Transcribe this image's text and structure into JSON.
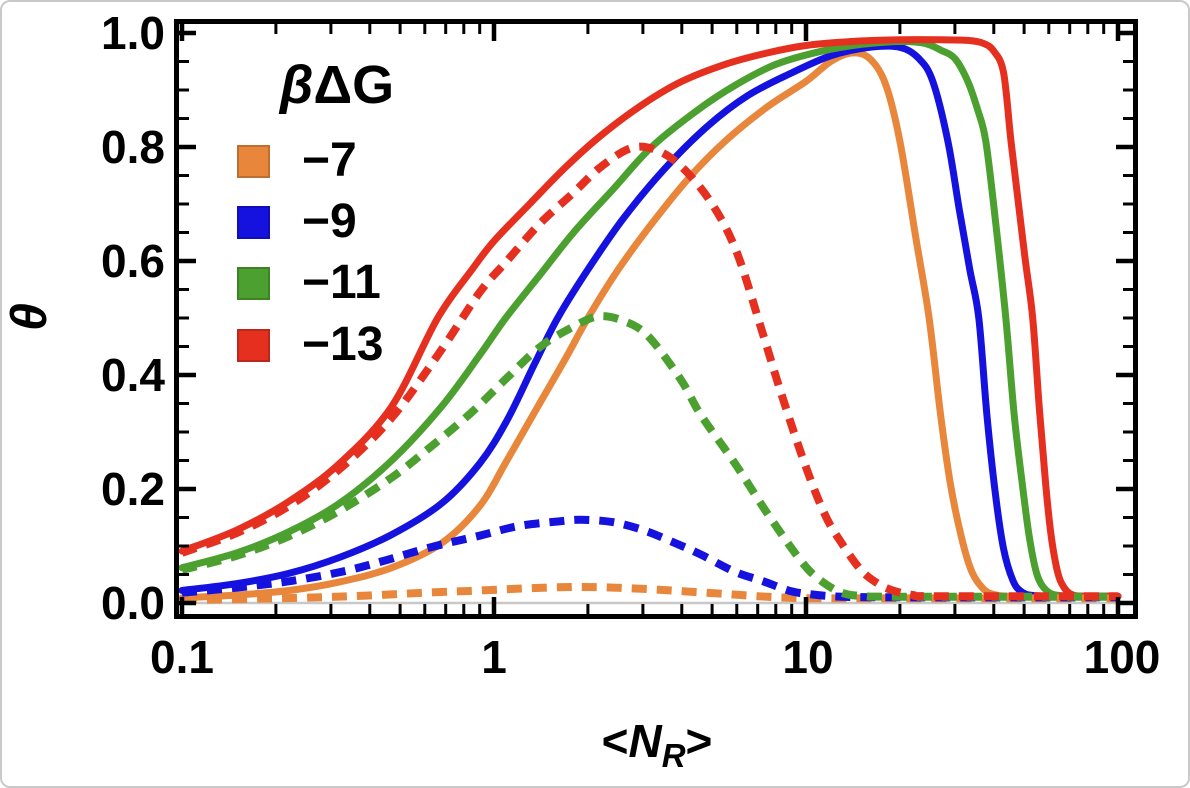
{
  "figure": {
    "y_axis_label": "θ",
    "x_axis_label": {
      "open": "<",
      "symbol": "N",
      "subscript": "R",
      "close": ">"
    }
  },
  "legend": {
    "title_beta": "β",
    "title_rest": "ΔG",
    "items": [
      {
        "label": "−7",
        "color": "#E8873B"
      },
      {
        "label": "−9",
        "color": "#1512DF"
      },
      {
        "label": "−11",
        "color": "#4BA02F"
      },
      {
        "label": "−13",
        "color": "#E53020"
      }
    ]
  },
  "chart_data": {
    "type": "line",
    "x_scale": "log",
    "xlabel": "<N_R>",
    "ylabel": "θ",
    "xlim": [
      0.1,
      100
    ],
    "ylim": [
      0.0,
      1.0
    ],
    "grid": false,
    "frame_color": "#000000",
    "zero_line_color": "#c8c8c8",
    "legend_position": "top-left-inside",
    "x_tick_labels": [
      "0.1",
      "1",
      "10",
      "100"
    ],
    "x_major_values": [
      0.1,
      1,
      10,
      100
    ],
    "y_tick_labels": [
      "0.0",
      "0.2",
      "0.4",
      "0.6",
      "0.8",
      "1.0"
    ],
    "y_major_values": [
      0.0,
      0.2,
      0.4,
      0.6,
      0.8,
      1.0
    ],
    "y_minor_step": 0.05,
    "series": [
      {
        "name": "βΔG = −7 solid",
        "group": "−7",
        "style": "solid",
        "color": "#E8873B",
        "points": [
          [
            0.1,
            0.009
          ],
          [
            0.15,
            0.014
          ],
          [
            0.22,
            0.022
          ],
          [
            0.32,
            0.037
          ],
          [
            0.47,
            0.062
          ],
          [
            0.68,
            0.105
          ],
          [
            0.9,
            0.17
          ],
          [
            1.1,
            0.25
          ],
          [
            1.4,
            0.35
          ],
          [
            1.7,
            0.43
          ],
          [
            2.0,
            0.5
          ],
          [
            2.5,
            0.585
          ],
          [
            3.2,
            0.665
          ],
          [
            4.2,
            0.745
          ],
          [
            5.5,
            0.81
          ],
          [
            7.5,
            0.87
          ],
          [
            10,
            0.915
          ],
          [
            12,
            0.95
          ],
          [
            14,
            0.965
          ],
          [
            16,
            0.955
          ],
          [
            18,
            0.91
          ],
          [
            20,
            0.81
          ],
          [
            22.5,
            0.64
          ],
          [
            24.8,
            0.5
          ],
          [
            27,
            0.33
          ],
          [
            29,
            0.21
          ],
          [
            31.5,
            0.115
          ],
          [
            34,
            0.055
          ],
          [
            37,
            0.025
          ],
          [
            40,
            0.015
          ],
          [
            45,
            0.012
          ],
          [
            60,
            0.012
          ],
          [
            100,
            0.012
          ]
        ]
      },
      {
        "name": "βΔG = −9 solid",
        "group": "−9",
        "style": "solid",
        "color": "#1512DF",
        "points": [
          [
            0.1,
            0.022
          ],
          [
            0.15,
            0.034
          ],
          [
            0.22,
            0.052
          ],
          [
            0.32,
            0.08
          ],
          [
            0.47,
            0.12
          ],
          [
            0.68,
            0.175
          ],
          [
            0.9,
            0.245
          ],
          [
            1.1,
            0.32
          ],
          [
            1.35,
            0.42
          ],
          [
            1.6,
            0.5
          ],
          [
            2.0,
            0.585
          ],
          [
            2.6,
            0.675
          ],
          [
            3.5,
            0.76
          ],
          [
            4.8,
            0.835
          ],
          [
            6.5,
            0.89
          ],
          [
            9,
            0.93
          ],
          [
            12,
            0.96
          ],
          [
            16,
            0.975
          ],
          [
            20,
            0.975
          ],
          [
            23,
            0.955
          ],
          [
            25.5,
            0.915
          ],
          [
            28.5,
            0.81
          ],
          [
            31,
            0.69
          ],
          [
            33.5,
            0.585
          ],
          [
            35.8,
            0.5
          ],
          [
            38,
            0.33
          ],
          [
            40.5,
            0.19
          ],
          [
            43,
            0.095
          ],
          [
            46,
            0.04
          ],
          [
            49,
            0.02
          ],
          [
            54,
            0.013
          ],
          [
            70,
            0.012
          ],
          [
            100,
            0.012
          ]
        ]
      },
      {
        "name": "βΔG = −11 solid",
        "group": "−11",
        "style": "solid",
        "color": "#4BA02F",
        "points": [
          [
            0.1,
            0.062
          ],
          [
            0.15,
            0.088
          ],
          [
            0.22,
            0.125
          ],
          [
            0.32,
            0.175
          ],
          [
            0.47,
            0.25
          ],
          [
            0.68,
            0.345
          ],
          [
            0.9,
            0.435
          ],
          [
            1.09,
            0.5
          ],
          [
            1.4,
            0.575
          ],
          [
            1.8,
            0.65
          ],
          [
            2.4,
            0.725
          ],
          [
            3.2,
            0.8
          ],
          [
            4.5,
            0.865
          ],
          [
            6,
            0.91
          ],
          [
            8,
            0.945
          ],
          [
            11,
            0.967
          ],
          [
            15,
            0.98
          ],
          [
            20,
            0.985
          ],
          [
            24,
            0.982
          ],
          [
            27,
            0.97
          ],
          [
            30,
            0.955
          ],
          [
            33,
            0.915
          ],
          [
            35.5,
            0.865
          ],
          [
            37.7,
            0.81
          ],
          [
            40.5,
            0.67
          ],
          [
            43.7,
            0.5
          ],
          [
            46.5,
            0.33
          ],
          [
            49.3,
            0.21
          ],
          [
            52,
            0.115
          ],
          [
            55,
            0.05
          ],
          [
            59,
            0.022
          ],
          [
            65,
            0.013
          ],
          [
            80,
            0.012
          ],
          [
            100,
            0.012
          ]
        ]
      },
      {
        "name": "βΔG = −13 solid",
        "group": "−13",
        "style": "solid",
        "color": "#E53020",
        "points": [
          [
            0.1,
            0.091
          ],
          [
            0.15,
            0.128
          ],
          [
            0.22,
            0.178
          ],
          [
            0.32,
            0.245
          ],
          [
            0.47,
            0.345
          ],
          [
            0.66,
            0.5
          ],
          [
            0.85,
            0.585
          ],
          [
            1.0,
            0.635
          ],
          [
            1.3,
            0.7
          ],
          [
            1.7,
            0.765
          ],
          [
            2.2,
            0.82
          ],
          [
            3.0,
            0.875
          ],
          [
            4.0,
            0.915
          ],
          [
            5.5,
            0.945
          ],
          [
            7.5,
            0.965
          ],
          [
            10,
            0.978
          ],
          [
            14,
            0.985
          ],
          [
            20,
            0.988
          ],
          [
            27,
            0.988
          ],
          [
            33,
            0.987
          ],
          [
            37,
            0.982
          ],
          [
            40,
            0.968
          ],
          [
            43,
            0.93
          ],
          [
            45.4,
            0.81
          ],
          [
            48,
            0.7
          ],
          [
            50.5,
            0.6
          ],
          [
            53.3,
            0.5
          ],
          [
            56,
            0.34
          ],
          [
            58.6,
            0.21
          ],
          [
            61,
            0.12
          ],
          [
            64,
            0.055
          ],
          [
            67,
            0.028
          ],
          [
            71,
            0.015
          ],
          [
            78,
            0.012
          ],
          [
            100,
            0.012
          ]
        ]
      },
      {
        "name": "βΔG = −7 dashed",
        "group": "−7",
        "style": "dashed",
        "color": "#E8873B",
        "points": [
          [
            0.1,
            0.005
          ],
          [
            0.2,
            0.008
          ],
          [
            0.35,
            0.012
          ],
          [
            0.6,
            0.018
          ],
          [
            0.9,
            0.022
          ],
          [
            1.3,
            0.026
          ],
          [
            1.8,
            0.028
          ],
          [
            2.4,
            0.027
          ],
          [
            3.2,
            0.024
          ],
          [
            4.2,
            0.02
          ],
          [
            5.5,
            0.016
          ],
          [
            7,
            0.012
          ],
          [
            9,
            0.009
          ],
          [
            12,
            0.008
          ],
          [
            30,
            0.008
          ],
          [
            100,
            0.008
          ]
        ]
      },
      {
        "name": "βΔG = −9 dashed",
        "group": "−9",
        "style": "dashed",
        "color": "#1512DF",
        "points": [
          [
            0.1,
            0.018
          ],
          [
            0.15,
            0.027
          ],
          [
            0.22,
            0.038
          ],
          [
            0.32,
            0.054
          ],
          [
            0.43,
            0.072
          ],
          [
            0.63,
            0.098
          ],
          [
            0.9,
            0.118
          ],
          [
            1.2,
            0.135
          ],
          [
            1.6,
            0.143
          ],
          [
            1.9,
            0.146
          ],
          [
            2.4,
            0.142
          ],
          [
            3.0,
            0.128
          ],
          [
            3.7,
            0.108
          ],
          [
            4.6,
            0.085
          ],
          [
            5.9,
            0.055
          ],
          [
            7.3,
            0.038
          ],
          [
            8.9,
            0.021
          ],
          [
            10.5,
            0.015
          ],
          [
            13,
            0.011
          ],
          [
            20,
            0.01
          ],
          [
            100,
            0.01
          ]
        ]
      },
      {
        "name": "βΔG = −11 dashed",
        "group": "−11",
        "style": "dashed",
        "color": "#4BA02F",
        "points": [
          [
            0.1,
            0.058
          ],
          [
            0.15,
            0.083
          ],
          [
            0.22,
            0.117
          ],
          [
            0.32,
            0.162
          ],
          [
            0.47,
            0.22
          ],
          [
            0.63,
            0.275
          ],
          [
            0.85,
            0.335
          ],
          [
            1.1,
            0.395
          ],
          [
            1.41,
            0.45
          ],
          [
            1.8,
            0.485
          ],
          [
            2.16,
            0.503
          ],
          [
            2.6,
            0.495
          ],
          [
            3.12,
            0.468
          ],
          [
            3.97,
            0.392
          ],
          [
            4.6,
            0.33
          ],
          [
            5.9,
            0.246
          ],
          [
            7.5,
            0.158
          ],
          [
            9.6,
            0.075
          ],
          [
            11,
            0.042
          ],
          [
            13,
            0.018
          ],
          [
            15.5,
            0.012
          ],
          [
            20,
            0.011
          ],
          [
            100,
            0.011
          ]
        ]
      },
      {
        "name": "βΔG = −13 dashed",
        "group": "−13",
        "style": "dashed",
        "color": "#E53020",
        "points": [
          [
            0.1,
            0.088
          ],
          [
            0.15,
            0.123
          ],
          [
            0.22,
            0.17
          ],
          [
            0.32,
            0.235
          ],
          [
            0.47,
            0.325
          ],
          [
            0.68,
            0.445
          ],
          [
            0.9,
            0.545
          ],
          [
            1.1,
            0.6
          ],
          [
            1.4,
            0.665
          ],
          [
            1.8,
            0.72
          ],
          [
            2.2,
            0.765
          ],
          [
            2.75,
            0.798
          ],
          [
            3.3,
            0.795
          ],
          [
            4.0,
            0.765
          ],
          [
            5.0,
            0.7
          ],
          [
            6.0,
            0.615
          ],
          [
            7.2,
            0.48
          ],
          [
            8.3,
            0.37
          ],
          [
            9.9,
            0.245
          ],
          [
            11.5,
            0.155
          ],
          [
            13,
            0.105
          ],
          [
            15,
            0.058
          ],
          [
            17,
            0.034
          ],
          [
            19,
            0.022
          ],
          [
            22,
            0.014
          ],
          [
            26,
            0.012
          ],
          [
            100,
            0.012
          ]
        ]
      }
    ]
  }
}
